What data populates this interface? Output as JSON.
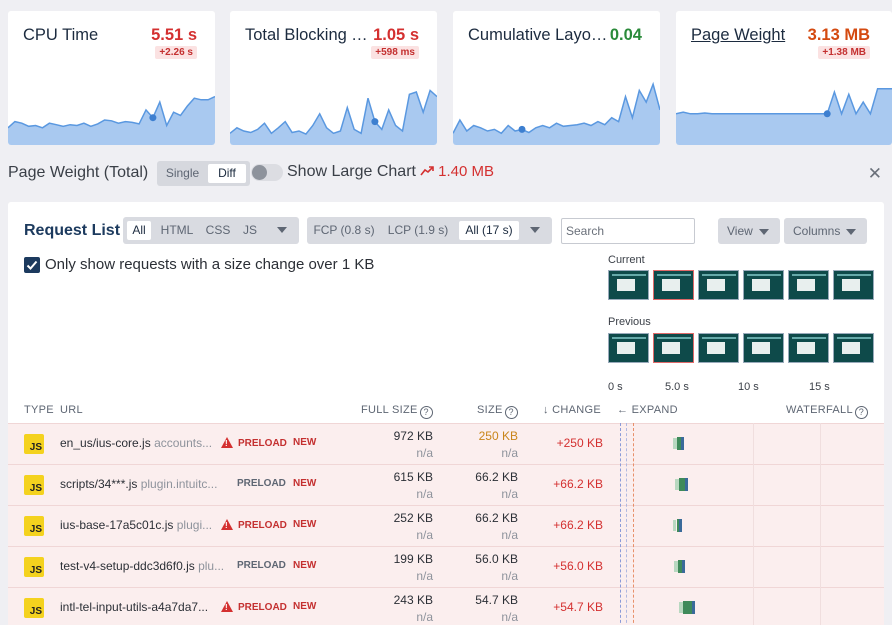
{
  "cards": [
    {
      "title": "CPU Time",
      "value": "5.51 s",
      "delta": "+2.26 s",
      "value_color": "red",
      "underline": false,
      "spark": [
        0.22,
        0.3,
        0.28,
        0.24,
        0.25,
        0.22,
        0.28,
        0.26,
        0.24,
        0.26,
        0.25,
        0.28,
        0.24,
        0.27,
        0.32,
        0.31,
        0.28,
        0.3,
        0.29,
        0.27,
        0.45,
        0.35,
        0.55,
        0.25,
        0.42,
        0.38,
        0.5,
        0.6,
        0.58,
        0.58,
        0.62
      ]
    },
    {
      "title": "Total Blocking T...",
      "value": "1.05 s",
      "delta": "+598 ms",
      "value_color": "red",
      "underline": false,
      "spark": [
        0.15,
        0.22,
        0.18,
        0.16,
        0.2,
        0.28,
        0.15,
        0.22,
        0.3,
        0.16,
        0.18,
        0.14,
        0.25,
        0.4,
        0.22,
        0.15,
        0.18,
        0.48,
        0.2,
        0.15,
        0.6,
        0.3,
        0.2,
        0.45,
        0.25,
        0.18,
        0.65,
        0.68,
        0.42,
        0.7,
        0.62
      ]
    },
    {
      "title": "Cumulative Layou...",
      "value": "0.04",
      "delta": "",
      "value_color": "green",
      "underline": false,
      "spark": [
        0.15,
        0.32,
        0.18,
        0.25,
        0.22,
        0.18,
        0.2,
        0.15,
        0.25,
        0.18,
        0.2,
        0.16,
        0.22,
        0.25,
        0.22,
        0.28,
        0.24,
        0.25,
        0.26,
        0.28,
        0.25,
        0.3,
        0.26,
        0.35,
        0.3,
        0.62,
        0.35,
        0.7,
        0.55,
        0.78,
        0.45
      ]
    },
    {
      "title": "Page Weight",
      "value": "3.13 MB",
      "delta": "+1.38 MB",
      "value_color": "orange",
      "underline": true,
      "spark": [
        0.4,
        0.42,
        0.4,
        0.4,
        0.41,
        0.4,
        0.4,
        0.4,
        0.4,
        0.4,
        0.4,
        0.4,
        0.4,
        0.4,
        0.4,
        0.4,
        0.4,
        0.4,
        0.4,
        0.4,
        0.4,
        0.4,
        0.68,
        0.4,
        0.65,
        0.4,
        0.55,
        0.4,
        0.72,
        0.72,
        0.72
      ]
    }
  ],
  "page_weight_bar": {
    "title": "Page Weight (Total)",
    "mode_single": "Single",
    "mode_diff": "Diff",
    "toggle_label": "Show Large Chart",
    "trend_text": "1.40 MB",
    "trend_icon": "trend-up-icon",
    "close_icon": "close-icon"
  },
  "request_list": {
    "title": "Request List",
    "type_filters": [
      "All",
      "HTML",
      "CSS",
      "JS"
    ],
    "metric_filters": [
      "FCP (0.8 s)",
      "LCP (1.9 s)",
      "All (17 s)"
    ],
    "search_placeholder": "Search",
    "view_label": "View",
    "columns_label": "Columns",
    "checkbox_label": "Only show requests with a size change over 1 KB",
    "filmstrip_current": "Current",
    "filmstrip_previous": "Previous",
    "filmstrip_axis": [
      "0 s",
      "5.0 s",
      "10 s",
      "15 s"
    ],
    "headers": {
      "type": "TYPE",
      "url": "URL",
      "full_size": "FULL SIZE",
      "size": "SIZE",
      "change": "↓ CHANGE",
      "expand": "← EXPAND",
      "waterfall": "WATERFALL"
    },
    "rows": [
      {
        "type": "JS",
        "file": "en_us/ius-core.js",
        "host": "accounts...",
        "tag": "PRELOAD",
        "tag_warn": true,
        "new": "NEW",
        "full": "972 KB",
        "full_prev": "n/a",
        "size": "250 KB",
        "size_prev": "n/a",
        "size_orange": true,
        "change": "+250 KB",
        "wf_start": 0.24,
        "wf_len": 0.025
      },
      {
        "type": "JS",
        "file": "scripts/34***.js",
        "host": "plugin.intuitc...",
        "tag": "PRELOAD",
        "tag_warn": false,
        "new": "NEW",
        "full": "615 KB",
        "full_prev": "n/a",
        "size": "66.2 KB",
        "size_prev": "n/a",
        "size_orange": false,
        "change": "+66.2 KB",
        "wf_start": 0.245,
        "wf_len": 0.035
      },
      {
        "type": "JS",
        "file": "ius-base-17a5c01c.js",
        "host": "plugi...",
        "tag": "PRELOAD",
        "tag_warn": true,
        "new": "NEW",
        "full": "252 KB",
        "full_prev": "n/a",
        "size": "66.2 KB",
        "size_prev": "n/a",
        "size_orange": false,
        "change": "+66.2 KB",
        "wf_start": 0.24,
        "wf_len": 0.018
      },
      {
        "type": "JS",
        "file": "test-v4-setup-ddc3d6f0.js",
        "host": "plu...",
        "tag": "PRELOAD",
        "tag_warn": false,
        "new": "NEW",
        "full": "199 KB",
        "full_prev": "n/a",
        "size": "56.0 KB",
        "size_prev": "n/a",
        "size_orange": false,
        "change": "+56.0 KB",
        "wf_start": 0.243,
        "wf_len": 0.025
      },
      {
        "type": "JS",
        "file": "intl-tel-input-utils-a4a7da7...",
        "host": "",
        "tag": "PRELOAD",
        "tag_warn": true,
        "new": "NEW",
        "full": "243 KB",
        "full_prev": "n/a",
        "size": "54.7 KB",
        "size_prev": "n/a",
        "size_orange": false,
        "change": "+54.7 KB",
        "wf_start": 0.26,
        "wf_len": 0.045
      }
    ]
  }
}
